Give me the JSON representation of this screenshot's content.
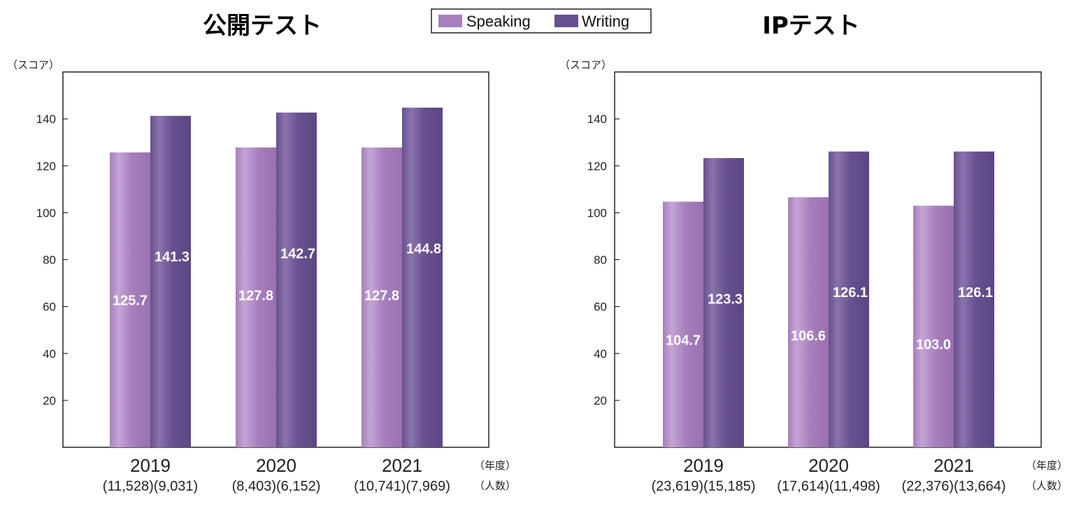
{
  "legend": {
    "items": [
      {
        "label": "Speaking",
        "color": "#a77fbc"
      },
      {
        "label": "Writing",
        "color": "#67508f"
      }
    ]
  },
  "chart_data": [
    {
      "type": "bar",
      "title": "公開テスト",
      "ylabel": "（スコア）",
      "ylim": [
        0,
        160
      ],
      "yticks": [
        20,
        40,
        60,
        80,
        100,
        120,
        140
      ],
      "categories": [
        "2019",
        "2020",
        "2021"
      ],
      "category_counts": [
        "(11,528)(9,031)",
        "(8,403)(6,152)",
        "(10,741)(7,969)"
      ],
      "xlabel": "（年度）",
      "count_label": "（人数）",
      "series": [
        {
          "name": "Speaking",
          "values": [
            125.7,
            127.8,
            127.8
          ],
          "labels": [
            "125.7",
            "127.8",
            "127.8"
          ]
        },
        {
          "name": "Writing",
          "values": [
            141.3,
            142.7,
            144.8
          ],
          "labels": [
            "141.3",
            "142.7",
            "144.8"
          ]
        }
      ],
      "grid": false,
      "legend_position": "top-center"
    },
    {
      "type": "bar",
      "title": "IPテスト",
      "ylabel": "（スコア）",
      "ylim": [
        0,
        160
      ],
      "yticks": [
        20,
        40,
        60,
        80,
        100,
        120,
        140
      ],
      "categories": [
        "2019",
        "2020",
        "2021"
      ],
      "category_counts": [
        "(23,619)(15,185)",
        "(17,614)(11,498)",
        "(22,376)(13,664)"
      ],
      "xlabel": "（年度）",
      "count_label": "（人数）",
      "series": [
        {
          "name": "Speaking",
          "values": [
            104.7,
            106.6,
            103.0
          ],
          "labels": [
            "104.7",
            "106.6",
            "103.0"
          ]
        },
        {
          "name": "Writing",
          "values": [
            123.3,
            126.1,
            126.1
          ],
          "labels": [
            "123.3",
            "126.1",
            "126.1"
          ]
        }
      ],
      "grid": false,
      "legend_position": "top-center"
    }
  ]
}
